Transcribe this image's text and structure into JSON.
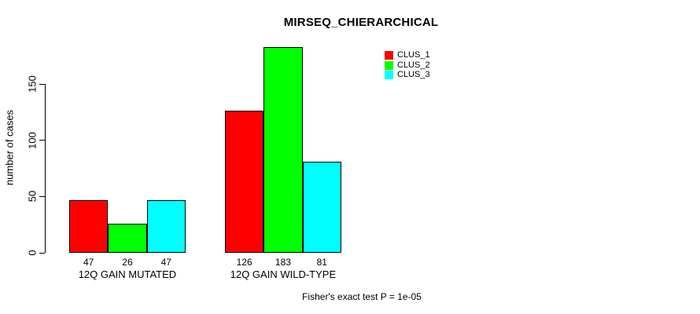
{
  "chart_data": {
    "type": "bar",
    "title": "MIRSEQ_CHIERARCHICAL",
    "ylabel": "number of cases",
    "xlabel": "",
    "categories": [
      "12Q GAIN MUTATED",
      "12Q GAIN WILD-TYPE"
    ],
    "series": [
      {
        "name": "CLUS_1",
        "color": "#ff0000",
        "values": [
          47,
          126
        ]
      },
      {
        "name": "CLUS_2",
        "color": "#00ff00",
        "values": [
          26,
          183
        ]
      },
      {
        "name": "CLUS_3",
        "color": "#00ffff",
        "values": [
          47,
          81
        ]
      }
    ],
    "bar_value_labels": [
      [
        47,
        26,
        47
      ],
      [
        126,
        183,
        81
      ]
    ],
    "yticks": [
      0,
      50,
      100,
      150
    ],
    "ylim": [
      0,
      190
    ],
    "grid": false,
    "legend": {
      "position": "top-right",
      "entries": [
        "CLUS_1",
        "CLUS_2",
        "CLUS_3"
      ],
      "colors": [
        "#ff0000",
        "#00ff00",
        "#00ffff"
      ]
    },
    "annotation": "Fisher's exact test P = 1e-05",
    "text_color": "#000000",
    "background_color": "#ffffff"
  }
}
